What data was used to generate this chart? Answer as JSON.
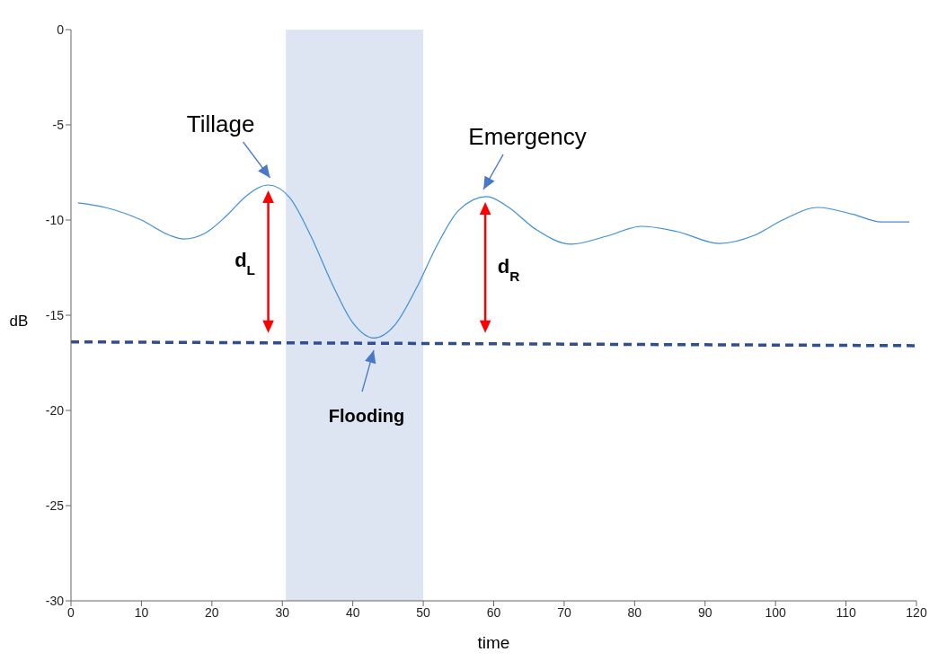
{
  "chart_data": {
    "type": "line",
    "xlabel": "time",
    "ylabel": "dB",
    "xlim": [
      0,
      120
    ],
    "xticks": [
      0,
      10,
      20,
      30,
      40,
      50,
      60,
      70,
      80,
      90,
      100,
      110,
      120
    ],
    "ylim": [
      -30,
      0
    ],
    "yticks": [
      -30,
      -25,
      -20,
      -15,
      -10,
      -5,
      0
    ],
    "series": [
      {
        "color": "#3d8fd6",
        "line_style": "solid",
        "x": [
          1,
          5,
          10,
          14,
          16,
          19,
          22,
          25,
          28,
          31,
          34,
          37,
          40,
          43,
          46,
          49,
          52,
          55,
          59,
          62,
          66,
          71,
          76,
          81,
          86,
          92,
          97,
          101,
          106,
          111,
          115,
          119
        ],
        "values": [
          -9.1,
          -9.35,
          -10.0,
          -10.8,
          -11.0,
          -10.7,
          -9.8,
          -8.7,
          -8.16,
          -8.8,
          -10.8,
          -13.3,
          -15.4,
          -16.2,
          -15.5,
          -13.6,
          -11.3,
          -9.5,
          -8.77,
          -9.3,
          -10.5,
          -11.27,
          -10.85,
          -10.33,
          -10.6,
          -11.23,
          -10.8,
          -10.0,
          -9.34,
          -9.7,
          -10.1,
          -10.1
        ]
      },
      {
        "color": "#2e4f96",
        "line_style": "dashed",
        "x": [
          0,
          120
        ],
        "values": [
          -16.4,
          -16.6
        ]
      }
    ],
    "bands": [
      {
        "axis": "x",
        "from": 30.5,
        "to": 50,
        "color": "#dde5f2"
      }
    ],
    "annotations": [
      {
        "text": "Tillage",
        "x": 28,
        "y": -8.16
      },
      {
        "text": "Emergency",
        "x": 58.8,
        "y": -8.77
      },
      "Flooding",
      "d$_{L}$",
      "d$_{R}$"
    ]
  }
}
